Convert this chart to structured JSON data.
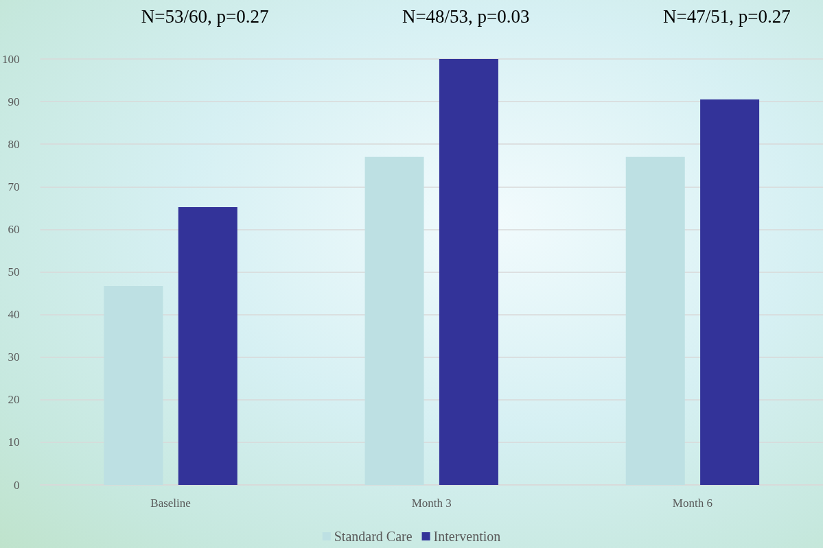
{
  "chart_data": {
    "type": "bar",
    "categories": [
      "Baseline",
      "Month 3",
      "Month 6"
    ],
    "series": [
      {
        "name": "Standard Care",
        "color": "#bde0e3",
        "values": [
          46.7,
          77,
          77
        ]
      },
      {
        "name": "Intervention",
        "color": "#333399",
        "values": [
          65.2,
          100,
          90.5
        ]
      }
    ],
    "ylim": [
      0,
      100
    ],
    "yticks": [
      0,
      10,
      20,
      30,
      40,
      50,
      60,
      70,
      80,
      90,
      100
    ],
    "grid": "y",
    "legend": "bottom",
    "annotations": [
      "N=53/60, p=0.27",
      "N=48/53, p=0.03",
      "N=47/51, p=0.27"
    ]
  }
}
